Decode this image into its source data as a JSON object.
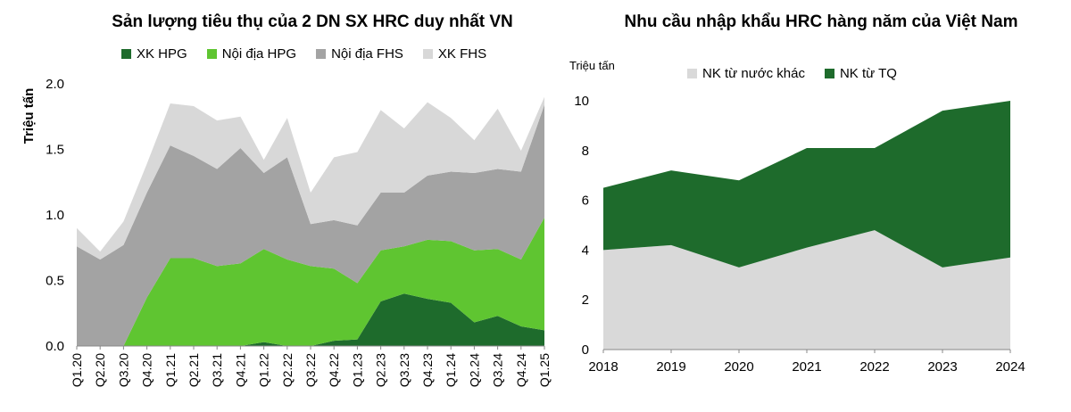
{
  "chart_data": [
    {
      "type": "area",
      "stacked": true,
      "title": "Sản lượng tiêu thụ của 2 DN SX HRC duy nhất VN",
      "ylabel": "Triệu tấn",
      "xlabel": "",
      "ylim": [
        0,
        2.0
      ],
      "yticks": [
        "0.0",
        "0.5",
        "1.0",
        "1.5",
        "2.0"
      ],
      "legend_position": "top",
      "grid": false,
      "categories": [
        "Q1.20",
        "Q2.20",
        "Q3.20",
        "Q4.20",
        "Q1.21",
        "Q2.21",
        "Q3.21",
        "Q4.21",
        "Q1.22",
        "Q2.22",
        "Q3.22",
        "Q4.22",
        "Q1.23",
        "Q2.23",
        "Q3.23",
        "Q4.23",
        "Q1.24",
        "Q2.24",
        "Q3.24",
        "Q4.24",
        "Q1.25"
      ],
      "series": [
        {
          "name": "XK HPG",
          "color": "#1e6b2c",
          "values": [
            0,
            0,
            0,
            0,
            0,
            0,
            0,
            0,
            0.03,
            0,
            0,
            0.04,
            0.05,
            0.34,
            0.4,
            0.36,
            0.33,
            0.18,
            0.23,
            0.15,
            0.12
          ]
        },
        {
          "name": "Nội địa HPG",
          "color": "#5fc531",
          "values": [
            0,
            0,
            0,
            0.37,
            0.67,
            0.67,
            0.61,
            0.63,
            0.71,
            0.66,
            0.61,
            0.55,
            0.43,
            0.39,
            0.36,
            0.45,
            0.47,
            0.55,
            0.51,
            0.51,
            0.86
          ]
        },
        {
          "name": "Nội địa FHS",
          "color": "#a3a3a3",
          "values": [
            0.76,
            0.66,
            0.77,
            0.8,
            0.86,
            0.78,
            0.74,
            0.88,
            0.58,
            0.78,
            0.32,
            0.37,
            0.44,
            0.44,
            0.41,
            0.49,
            0.53,
            0.59,
            0.61,
            0.67,
            0.86
          ]
        },
        {
          "name": "XK FHS",
          "color": "#d8d8d8",
          "values": [
            0.14,
            0.06,
            0.18,
            0.22,
            0.32,
            0.38,
            0.37,
            0.24,
            0.1,
            0.3,
            0.24,
            0.48,
            0.56,
            0.63,
            0.49,
            0.56,
            0.41,
            0.25,
            0.46,
            0.16,
            0.06
          ]
        }
      ]
    },
    {
      "type": "area",
      "stacked": true,
      "title": "Nhu cầu nhập khẩu HRC hàng năm của Việt Nam",
      "ylabel": "Triệu tấn",
      "xlabel": "",
      "ylim": [
        0,
        10
      ],
      "yticks": [
        "0",
        "2",
        "4",
        "6",
        "8",
        "10"
      ],
      "legend_position": "top",
      "grid": false,
      "categories": [
        "2018",
        "2019",
        "2020",
        "2021",
        "2022",
        "2023",
        "2024"
      ],
      "series": [
        {
          "name": "NK từ nước khác",
          "color": "#d9d9d9",
          "values": [
            4.0,
            4.2,
            3.3,
            4.1,
            4.8,
            3.3,
            3.7
          ]
        },
        {
          "name": "NK từ TQ",
          "color": "#1e6b2c",
          "values": [
            2.5,
            3.0,
            3.5,
            4.0,
            3.3,
            6.3,
            6.3
          ]
        }
      ]
    }
  ]
}
